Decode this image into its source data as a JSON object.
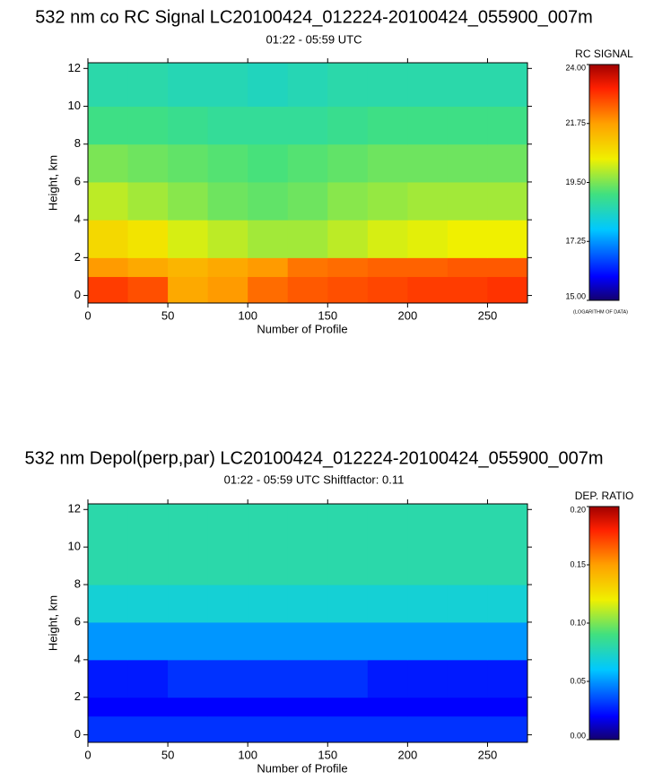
{
  "chart_data": [
    {
      "type": "heatmap",
      "title": "532 nm co RC Signal LC20100424_012224-20100424_055900_007m",
      "subtitle": "01:22 - 05:59 UTC",
      "xlabel": "Number of Profile",
      "ylabel": "Height, km",
      "xlim": [
        0,
        275
      ],
      "xticks": [
        0,
        50,
        100,
        150,
        200,
        250
      ],
      "ylim": [
        -0.4,
        12.3
      ],
      "yticks": [
        0,
        2,
        4,
        6,
        8,
        10,
        12
      ],
      "colormap": "rainbow",
      "colorbar_label": "RC SIGNAL",
      "colorbar_note": "(LOGARITHM OF DATA)",
      "clim": [
        15,
        24
      ],
      "cticks": [
        {
          "value": 24,
          "label": "24.00"
        },
        {
          "value": 21.75,
          "label": "21.75"
        },
        {
          "value": 19.5,
          "label": "19.50"
        },
        {
          "value": 17.25,
          "label": "17.25"
        },
        {
          "value": 15,
          "label": "15.00"
        }
      ],
      "x_bins": [
        0,
        25,
        50,
        75,
        100,
        125,
        150,
        175,
        200,
        225,
        250,
        275
      ],
      "y_bins": [
        -0.4,
        1,
        2,
        4,
        6,
        8,
        10,
        12.3
      ],
      "z": [
        [
          22.8,
          22.6,
          21.6,
          21.8,
          22.3,
          22.5,
          22.6,
          22.7,
          22.8,
          22.8,
          22.9
        ],
        [
          21.8,
          21.6,
          21.4,
          21.6,
          21.8,
          22.2,
          22.3,
          22.4,
          22.4,
          22.5,
          22.5
        ],
        [
          20.8,
          20.6,
          20.2,
          20.0,
          19.8,
          19.8,
          20.0,
          20.2,
          20.3,
          20.4,
          20.4
        ],
        [
          20.0,
          19.8,
          19.6,
          19.4,
          19.3,
          19.4,
          19.6,
          19.7,
          19.8,
          19.8,
          19.8
        ],
        [
          19.5,
          19.4,
          19.3,
          19.2,
          19.1,
          19.2,
          19.3,
          19.4,
          19.4,
          19.4,
          19.4
        ],
        [
          19.0,
          19.0,
          18.9,
          18.8,
          18.8,
          18.8,
          18.9,
          19.0,
          19.0,
          19.0,
          19.0
        ],
        [
          18.6,
          18.6,
          18.5,
          18.5,
          18.4,
          18.5,
          18.6,
          18.6,
          18.6,
          18.6,
          18.6
        ]
      ]
    },
    {
      "type": "heatmap",
      "title": "532 nm Depol(perp,par) LC20100424_012224-20100424_055900_007m",
      "subtitle": "01:22 - 05:59 UTC Shiftfactor: 0.11",
      "xlabel": "Number of Profile",
      "ylabel": "Height, km",
      "xlim": [
        0,
        275
      ],
      "xticks": [
        0,
        50,
        100,
        150,
        200,
        250
      ],
      "ylim": [
        -0.4,
        12.3
      ],
      "yticks": [
        0,
        2,
        4,
        6,
        8,
        10,
        12
      ],
      "colormap": "rainbow",
      "colorbar_label": "DEP. RATIO",
      "clim": [
        0,
        0.2
      ],
      "cticks": [
        {
          "value": 0.2,
          "label": "0.20"
        },
        {
          "value": 0.15,
          "label": "0.15"
        },
        {
          "value": 0.1,
          "label": "0.10"
        },
        {
          "value": 0.05,
          "label": "0.05"
        },
        {
          "value": 0,
          "label": "0.00"
        }
      ],
      "x_bins": [
        0,
        25,
        50,
        75,
        100,
        125,
        150,
        175,
        200,
        225,
        250,
        275
      ],
      "y_bins": [
        -0.4,
        1,
        2,
        4,
        6,
        8,
        10,
        12.3
      ],
      "z": [
        [
          0.03,
          0.03,
          0.03,
          0.03,
          0.03,
          0.03,
          0.03,
          0.03,
          0.03,
          0.03,
          0.03
        ],
        [
          0.02,
          0.02,
          0.02,
          0.02,
          0.02,
          0.02,
          0.02,
          0.02,
          0.02,
          0.02,
          0.02
        ],
        [
          0.025,
          0.025,
          0.03,
          0.03,
          0.03,
          0.03,
          0.03,
          0.025,
          0.025,
          0.025,
          0.025
        ],
        [
          0.05,
          0.05,
          0.05,
          0.05,
          0.05,
          0.05,
          0.05,
          0.05,
          0.05,
          0.05,
          0.05
        ],
        [
          0.07,
          0.07,
          0.07,
          0.07,
          0.07,
          0.07,
          0.07,
          0.07,
          0.07,
          0.07,
          0.07
        ],
        [
          0.08,
          0.08,
          0.08,
          0.08,
          0.08,
          0.08,
          0.08,
          0.08,
          0.08,
          0.08,
          0.08
        ],
        [
          0.08,
          0.08,
          0.08,
          0.08,
          0.08,
          0.08,
          0.08,
          0.08,
          0.08,
          0.08,
          0.08
        ]
      ]
    }
  ]
}
